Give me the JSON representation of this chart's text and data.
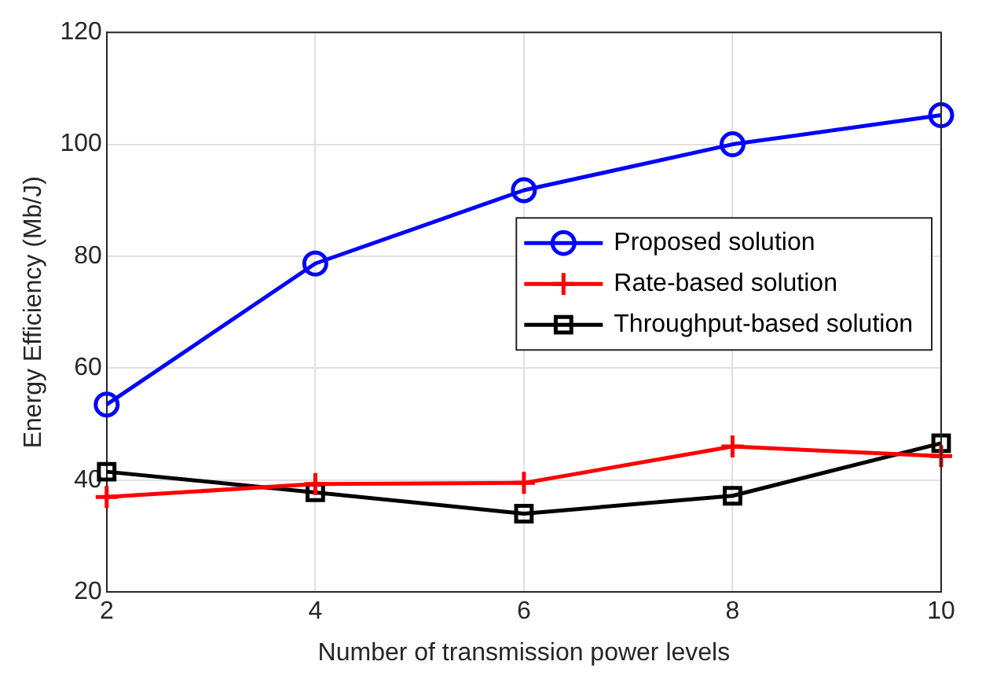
{
  "chart_data": {
    "type": "line",
    "xlabel": "Number of transmission power levels",
    "ylabel": "Energy Efficiency (Mb/J)",
    "x": [
      2,
      4,
      6,
      8,
      10
    ],
    "xlim": [
      2,
      10
    ],
    "xticks": [
      2,
      4,
      6,
      8,
      10
    ],
    "ylim": [
      20,
      120
    ],
    "yticks": [
      20,
      40,
      60,
      80,
      100,
      120
    ],
    "grid": true,
    "legend": "right",
    "line_style": "solid",
    "series": [
      {
        "name": "Proposed solution",
        "color": "#0000ff",
        "marker": "circle",
        "values": [
          53.5,
          78.7,
          91.8,
          100,
          105.2
        ]
      },
      {
        "name": "Rate-based solution",
        "color": "#ff0000",
        "marker": "cross",
        "values": [
          37,
          39.3,
          39.5,
          46,
          44.3
        ]
      },
      {
        "name": "Throughput-based solution",
        "color": "#000000",
        "marker": "square",
        "values": [
          41.5,
          37.8,
          34,
          37.2,
          46.6
        ]
      }
    ]
  }
}
